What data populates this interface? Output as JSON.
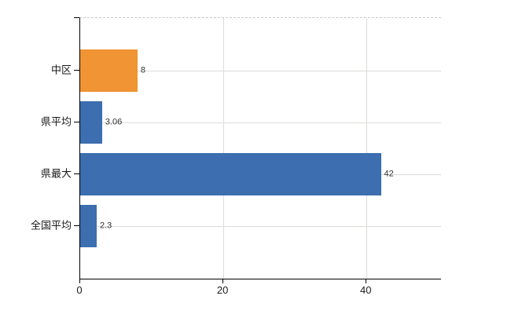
{
  "chart_data": {
    "type": "bar",
    "orientation": "horizontal",
    "title": "",
    "xlabel": "",
    "ylabel": "",
    "categories": [
      "中区",
      "県平均",
      "県最大",
      "全国平均"
    ],
    "values": [
      8,
      3.06,
      42,
      2.3
    ],
    "value_labels": [
      "8",
      "3.06",
      "42",
      "2.3"
    ],
    "bar_colors": [
      "#f09434",
      "#3c6eb0",
      "#3c6eb0",
      "#3c6eb0"
    ],
    "x_ticks": [
      0,
      20,
      40
    ],
    "x_tick_labels": [
      "0",
      "20",
      "40"
    ],
    "xlim": [
      0,
      50.4
    ],
    "grid": true,
    "legend_position": "none",
    "value_labels_position": "outside-end"
  },
  "colors": {
    "background": "#ffffff",
    "bar_blue": "#3c6eb0",
    "bar_orange": "#f09434",
    "grid_line": "#d9ded8",
    "plot_top_border": "#c9c9c9",
    "axis_line": "#000000",
    "value_label_text": "#333333",
    "axis_label_text": "#1a1a1a"
  }
}
